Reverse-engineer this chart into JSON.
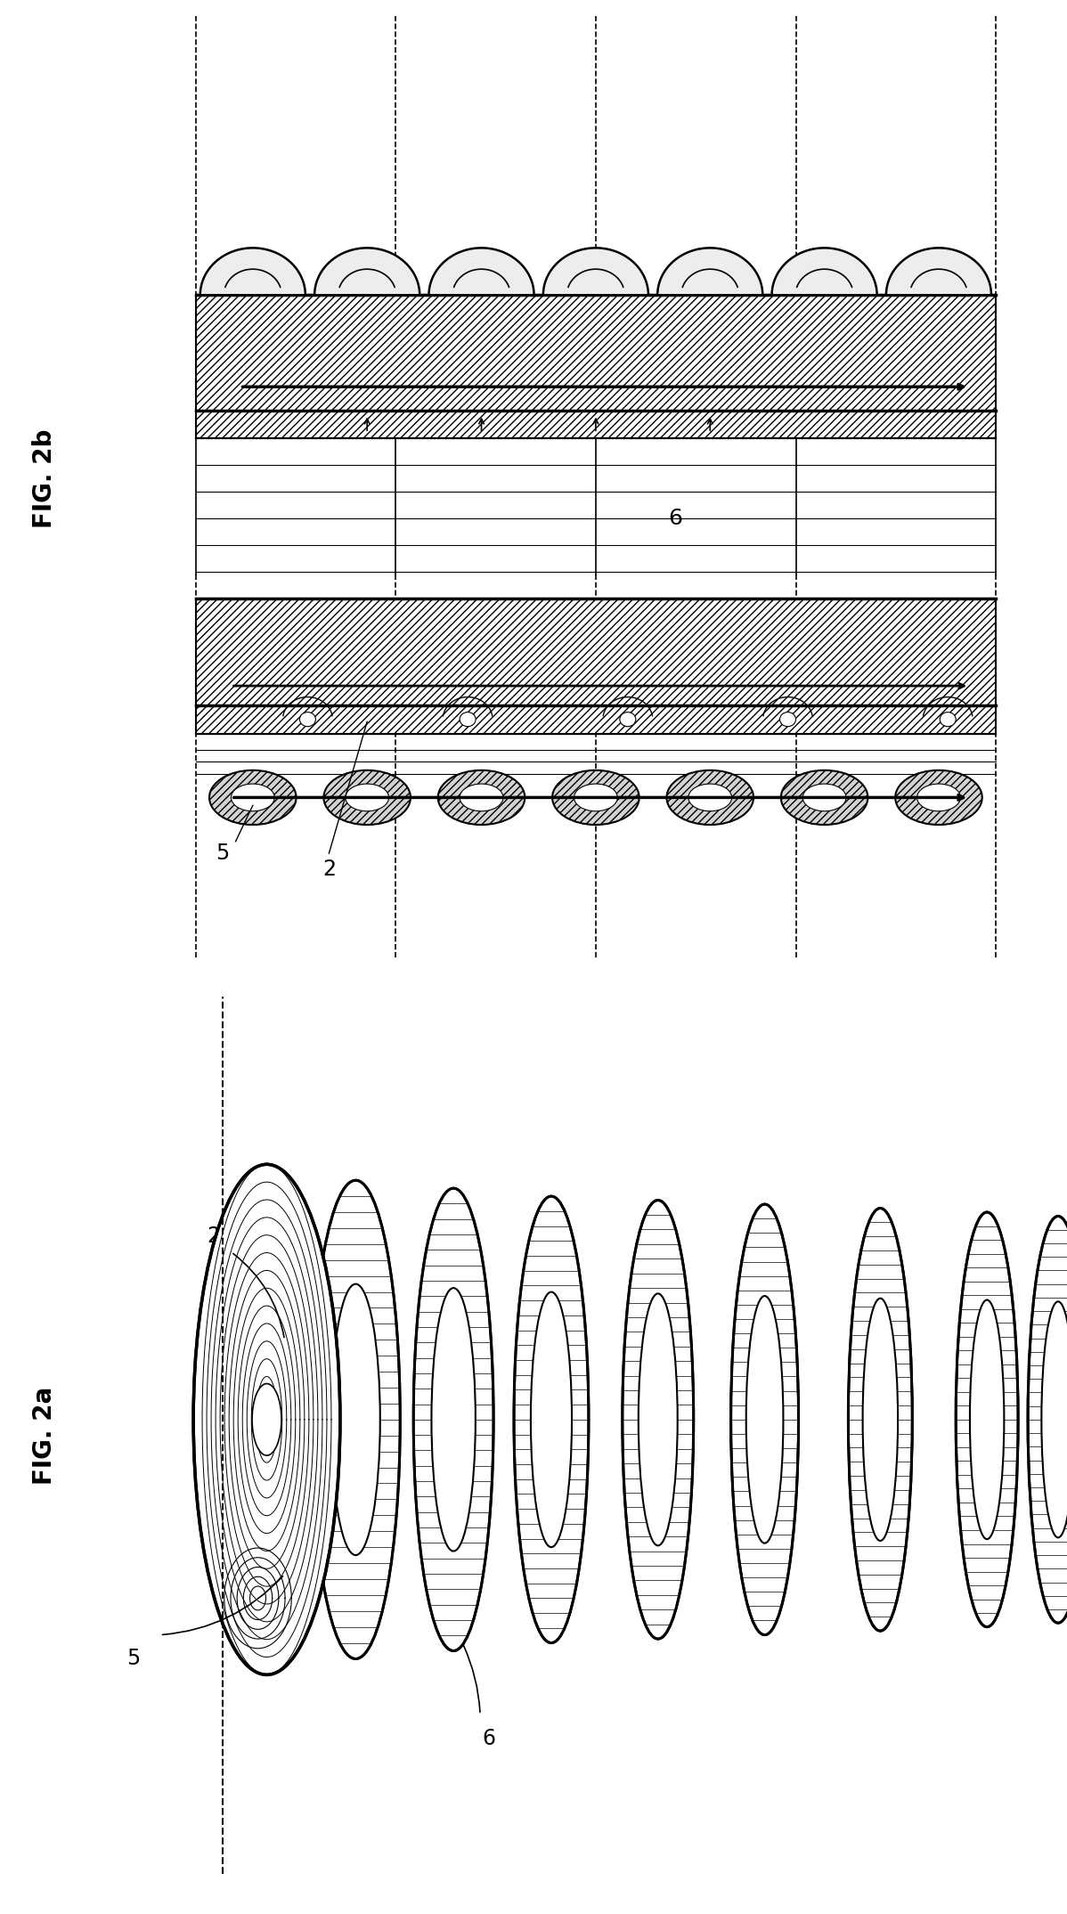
{
  "fig_width": 11.98,
  "fig_height": 21.49,
  "background": "#ffffff",
  "fig2a_label": "FIG. 2a",
  "fig2b_label": "FIG. 2b",
  "label_2": "2",
  "label_5": "5",
  "label_6": "6",
  "line_color": "#000000",
  "font_size_label": 18,
  "font_size_number": 15
}
